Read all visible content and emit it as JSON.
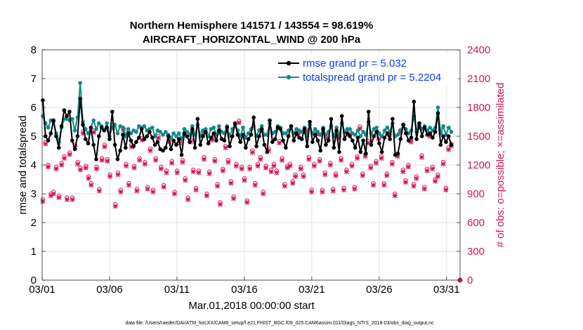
{
  "chart_data": {
    "type": "line",
    "title_line1": "Northern Hemisphere 141571 / 143554 = 98.619%",
    "title_line2": "AIRCRAFT_HORIZONTAL_WIND @ 200 hPa",
    "xlabel": "Mar.01,2018 00:00:00 start",
    "ylabel_left": "rmse and totalspread",
    "ylabel_right": "# of obs: o=possible; ×=assimilated",
    "footer": "data file: /Users/raeder/DAI/ATM_forcXX/CAM6_setup/f.e21.FHIST_BGC.f09_025.CAM6assim.011/Diags_NTrS_2018-03/obs_diag_output.nc",
    "xlim": [
      1,
      32
    ],
    "ylim_left": [
      0,
      8
    ],
    "ylim_right": [
      0,
      2400
    ],
    "xticks": [
      1,
      6,
      11,
      16,
      21,
      26,
      31
    ],
    "xtick_labels": [
      "03/01",
      "03/06",
      "03/11",
      "03/16",
      "03/21",
      "03/26",
      "03/31"
    ],
    "yticks_left": [
      0,
      1,
      2,
      3,
      4,
      5,
      6,
      7,
      8
    ],
    "yticks_right": [
      0,
      300,
      600,
      900,
      1200,
      1500,
      1800,
      2100,
      2400
    ],
    "colors": {
      "rmse": "#000000",
      "spread": "#0f8a8a",
      "obs": "#d4145a",
      "legend_text": "#0a3cf0"
    },
    "series": [
      {
        "name": "rmse grand pr = 5.032",
        "axis": "left",
        "values": [
          6.25,
          5.0,
          4.85,
          5.1,
          5.55,
          5.0,
          4.6,
          5.35,
          5.9,
          5.7,
          5.85,
          4.85,
          4.55,
          5.0,
          6.3,
          5.4,
          4.9,
          4.75,
          5.3,
          4.7,
          4.2,
          5.0,
          5.3,
          5.2,
          5.3,
          4.9,
          5.85,
          4.7,
          4.2,
          4.5,
          5.05,
          4.6,
          5.1,
          4.85,
          4.65,
          4.8,
          4.95,
          5.25,
          4.9,
          5.0,
          5.15,
          4.95,
          4.7,
          4.8,
          4.55,
          4.5,
          4.6,
          5.0,
          4.55,
          4.85,
          4.7,
          4.9,
          4.35,
          5.1,
          5.0,
          4.8,
          5.25,
          4.6,
          5.6,
          4.7,
          5.0,
          5.15,
          4.75,
          4.95,
          5.1,
          4.85,
          5.2,
          4.9,
          4.85,
          5.3,
          4.65,
          5.0,
          5.45,
          5.05,
          4.8,
          5.05,
          4.6,
          4.9,
          5.05,
          5.65,
          4.65,
          5.0,
          5.25,
          4.7,
          4.45,
          5.55,
          4.8,
          4.9,
          5.3,
          5.25,
          4.85,
          4.6,
          5.0,
          5.35,
          4.85,
          5.1,
          4.95,
          4.9,
          5.25,
          4.65,
          5.5,
          4.8,
          5.05,
          4.85,
          4.5,
          5.25,
          4.7,
          4.85,
          5.6,
          4.6,
          5.2,
          4.45,
          5.7,
          4.9,
          5.1,
          5.0,
          4.85,
          4.6,
          4.95,
          4.45,
          4.85,
          4.4,
          5.85,
          4.7,
          5.0,
          5.15,
          4.75,
          4.45,
          4.95,
          5.1,
          4.9,
          5.6,
          4.35,
          4.4,
          4.9,
          5.4,
          5.1,
          4.85,
          4.95,
          6.2,
          4.9,
          5.45,
          5.0,
          5.3,
          5.05,
          5.1,
          4.95,
          5.15,
          5.8,
          4.7,
          5.0,
          4.8,
          5.0,
          4.7
        ]
      },
      {
        "name": "totalspread grand pr = 5.2204",
        "axis": "left",
        "values": [
          5.7,
          5.45,
          5.3,
          5.55,
          5.5,
          5.1,
          4.8,
          5.3,
          5.6,
          5.6,
          5.55,
          5.6,
          5.2,
          5.65,
          6.85,
          5.5,
          5.25,
          5.1,
          5.3,
          5.55,
          5.25,
          5.45,
          5.35,
          5.2,
          5.45,
          5.0,
          5.3,
          5.4,
          5.1,
          5.35,
          5.3,
          5.0,
          5.25,
          5.1,
          5.2,
          5.15,
          5.35,
          5.3,
          5.35,
          5.2,
          5.25,
          5.3,
          5.0,
          5.2,
          5.15,
          5.05,
          5.15,
          5.05,
          4.95,
          5.1,
          5.0,
          5.1,
          4.9,
          5.25,
          5.15,
          5.05,
          5.35,
          5.05,
          5.4,
          5.0,
          5.2,
          5.25,
          5.0,
          5.25,
          5.3,
          5.05,
          5.35,
          5.15,
          5.1,
          5.35,
          5.0,
          5.25,
          5.4,
          5.2,
          5.0,
          5.3,
          4.95,
          5.1,
          5.25,
          5.35,
          5.0,
          5.2,
          5.35,
          5.05,
          5.05,
          5.45,
          5.1,
          5.15,
          5.35,
          5.3,
          5.1,
          5.1,
          5.2,
          5.35,
          5.1,
          5.25,
          5.2,
          5.15,
          5.3,
          5.0,
          5.4,
          5.1,
          5.25,
          5.15,
          5.05,
          5.3,
          5.05,
          5.15,
          5.35,
          5.0,
          5.3,
          5.05,
          5.45,
          5.15,
          5.25,
          5.25,
          5.1,
          5.05,
          5.2,
          5.0,
          5.15,
          5.05,
          5.5,
          5.1,
          5.25,
          5.3,
          5.1,
          5.0,
          5.2,
          5.3,
          5.15,
          5.45,
          5.0,
          5.05,
          5.2,
          5.4,
          5.25,
          5.1,
          5.2,
          5.7,
          5.15,
          5.45,
          5.25,
          5.35,
          5.2,
          5.3,
          5.2,
          5.3,
          6.0,
          5.1,
          5.35,
          5.05,
          5.3,
          5.15
        ]
      },
      {
        "name": "possible obs",
        "axis": "right",
        "marker": "o",
        "values": [
          840,
          1440,
          1200,
          900,
          920,
          1180,
          880,
          1220,
          1290,
          860,
          1330,
          860,
          1410,
          1230,
          1170,
          1550,
          1190,
          1080,
          1010,
          1560,
          1180,
          950,
          1270,
          1410,
          1260,
          1100,
          1610,
          790,
          1120,
          940,
          1580,
          1210,
          1010,
          1410,
          1190,
          950,
          1270,
          1480,
          1230,
          970,
          1370,
          940,
          1270,
          1500,
          1180,
          990,
          1140,
          1460,
          1240,
          920,
          1140,
          1450,
          1250,
          1060,
          860,
          1460,
          1150,
          960,
          1140,
          1530,
          1280,
          900,
          1130,
          1480,
          1260,
          1000,
          810,
          1160,
          1400,
          1250,
          1030,
          870,
          1210,
          1660,
          1180,
          1060,
          830,
          1180,
          1350,
          1010,
          1210,
          1280,
          920,
          1190,
          1370,
          1150,
          1210,
          1140,
          1450,
          1270,
          1000,
          1190,
          1210,
          1030,
          1100,
          1540,
          1180,
          1100,
          1570,
          1280,
          940,
          1210,
          1540,
          1260,
          940,
          1120,
          1500,
          1220,
          950,
          1110,
          1500,
          1270,
          960,
          1150,
          1540,
          1210,
          970,
          1290,
          1600,
          1110,
          1310,
          1450,
          1190,
          1010,
          1240,
          1490,
          1290,
          1010,
          1110,
          1540,
          1230,
          900,
          1310,
          1560,
          1150,
          1040,
          1200,
          1460,
          1000,
          1080,
          1610,
          1300,
          970,
          1160,
          1520,
          1180,
          1050,
          1100,
          1570,
          1230,
          960,
          1380,
          1420
        ]
      },
      {
        "name": "assimilated obs",
        "axis": "right",
        "marker": "x",
        "values": [
          820,
          1420,
          1180,
          880,
          900,
          1160,
          860,
          1200,
          1270,
          840,
          1310,
          840,
          1390,
          1210,
          1150,
          1530,
          1170,
          1060,
          990,
          1540,
          1160,
          930,
          1250,
          1390,
          1240,
          1080,
          1590,
          770,
          1100,
          920,
          1560,
          1190,
          990,
          1390,
          1170,
          930,
          1250,
          1460,
          1210,
          950,
          1350,
          920,
          1250,
          1480,
          1160,
          970,
          1120,
          1440,
          1220,
          900,
          1120,
          1430,
          1230,
          1040,
          840,
          1440,
          1130,
          940,
          1120,
          1510,
          1260,
          880,
          1110,
          1460,
          1240,
          980,
          790,
          1140,
          1380,
          1230,
          1010,
          850,
          1190,
          1640,
          1160,
          1040,
          810,
          1160,
          1330,
          990,
          1190,
          1260,
          900,
          1170,
          1350,
          1130,
          1190,
          1120,
          1430,
          1250,
          980,
          1170,
          1190,
          1010,
          1080,
          1520,
          1160,
          1080,
          1550,
          1260,
          920,
          1190,
          1520,
          1240,
          920,
          1100,
          1480,
          1200,
          930,
          1090,
          1480,
          1250,
          940,
          1130,
          1520,
          1190,
          950,
          1270,
          1580,
          1090,
          1290,
          1430,
          1170,
          990,
          1220,
          1470,
          1270,
          990,
          1090,
          1520,
          1210,
          880,
          1290,
          1540,
          1130,
          1020,
          1180,
          1440,
          980,
          1060,
          1590,
          1280,
          950,
          1140,
          1500,
          1160,
          1030,
          1080,
          1550,
          1210,
          940,
          1360,
          1400
        ]
      }
    ]
  }
}
